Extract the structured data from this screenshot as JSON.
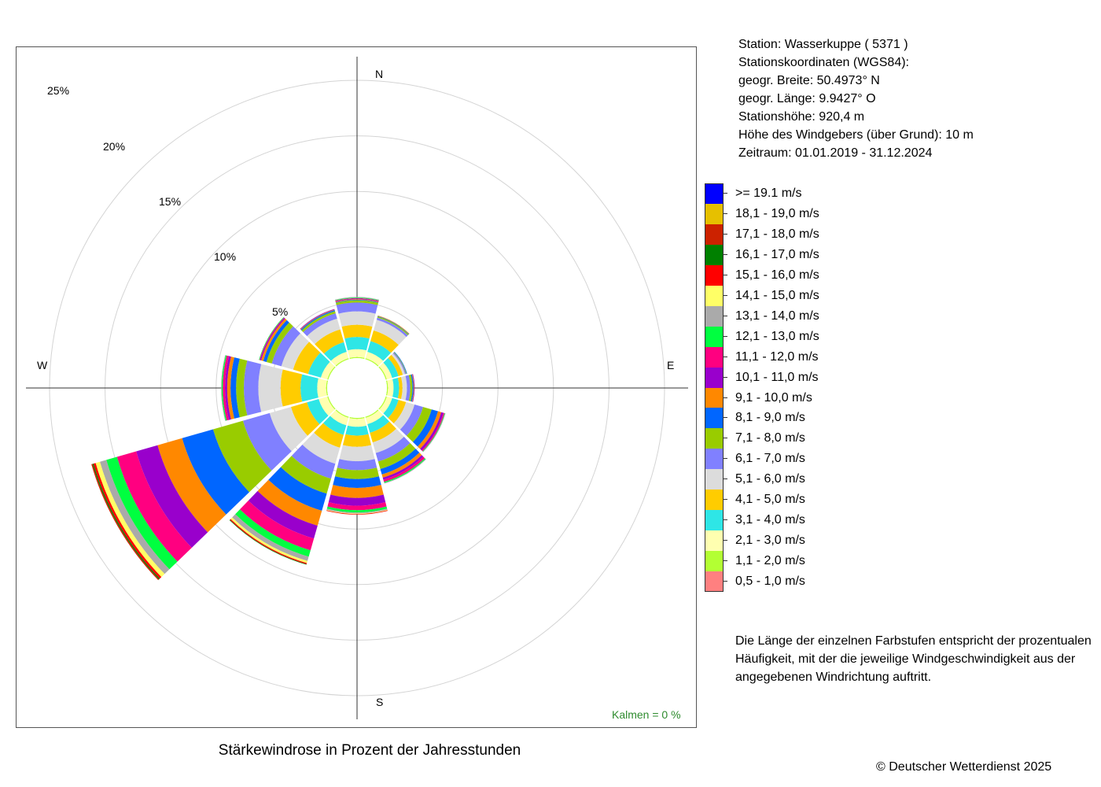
{
  "title": "Stärkewindrose in Prozent der Jahresstunden",
  "station": {
    "lines": [
      "Station:  Wasserkuppe  ( 5371 )",
      "Stationskoordinaten (WGS84):",
      "geogr. Breite: 50.4973° N",
      "geogr. Länge:   9.9427° O",
      "Stationshöhe: 920,4 m",
      "Höhe des Windgebers (über Grund): 10 m",
      "Zeitraum: 01.01.2019 - 31.12.2024"
    ]
  },
  "compass": {
    "north": "N",
    "east": "E",
    "south": "S",
    "west": "W"
  },
  "calm_label": "Kalmen  =  0 %",
  "legend_note": "Die Länge der einzelnen Farbstufen entspricht der prozentualen Häufigkeit, mit der die jeweilige Windgeschwindigkeit aus der angegebenen Windrichtung auftritt.",
  "copyright": "© Deutscher Wetterdienst  2025",
  "chart_data": {
    "type": "wind_rose",
    "title": "Stärkewindrose in Prozent der Jahresstunden",
    "unit": "%",
    "radial_ticks": [
      5,
      10,
      15,
      20,
      25
    ],
    "radial_tick_labels": [
      "5%",
      "10%",
      "15%",
      "20%",
      "25%"
    ],
    "directions_deg": [
      0,
      30,
      60,
      90,
      120,
      150,
      180,
      210,
      240,
      270,
      300,
      330
    ],
    "calm_percent": 0,
    "speed_classes": [
      {
        "label": "0,5 - 1,0 m/s",
        "color": "#ff8080"
      },
      {
        "label": "1,1 - 2,0 m/s",
        "color": "#b3ff33"
      },
      {
        "label": "2,1 - 3,0 m/s",
        "color": "#ffffb0"
      },
      {
        "label": "3,1 - 4,0 m/s",
        "color": "#2ee6e6"
      },
      {
        "label": "4,1 - 5,0 m/s",
        "color": "#ffcc00"
      },
      {
        "label": "5,1 - 6,0 m/s",
        "color": "#dcdcdc"
      },
      {
        "label": "6,1 - 7,0 m/s",
        "color": "#8080ff"
      },
      {
        "label": "7,1 - 8,0 m/s",
        "color": "#99cc00"
      },
      {
        "label": "8,1 - 9,0 m/s",
        "color": "#0066ff"
      },
      {
        "label": "9,1 - 10,0 m/s",
        "color": "#ff8800"
      },
      {
        "label": "10,1 - 11,0 m/s",
        "color": "#9900cc"
      },
      {
        "label": "11,1 - 12,0 m/s",
        "color": "#ff0080"
      },
      {
        "label": "12,1 - 13,0 m/s",
        "color": "#00ff40"
      },
      {
        "label": "13,1 - 14,0 m/s",
        "color": "#aaaaaa"
      },
      {
        "label": "14,1 - 15,0 m/s",
        "color": "#ffff66"
      },
      {
        "label": "15,1 - 16,0 m/s",
        "color": "#ff0000"
      },
      {
        "label": "16,1 - 17,0 m/s",
        "color": "#008000"
      },
      {
        "label": "17,1 - 18,0 m/s",
        "color": "#cc2200"
      },
      {
        "label": "18,1 - 19,0 m/s",
        "color": "#e6c000"
      },
      {
        "label": ">= 19.1 m/s",
        "color": "#0000ff"
      }
    ],
    "frequencies_percent": [
      [
        0,
        0.1,
        0.7,
        1.1,
        1.1,
        1.2,
        0.8,
        0.2,
        0.05,
        0.05,
        0.05,
        0.05,
        0.05,
        0.05,
        0,
        0,
        0,
        0,
        0,
        0
      ],
      [
        0,
        0.1,
        0.6,
        1.0,
        1.0,
        1.0,
        0.2,
        0.1,
        0.05,
        0.05,
        0,
        0,
        0,
        0,
        0,
        0,
        0,
        0,
        0,
        0
      ],
      [
        0,
        0.1,
        0.5,
        0.6,
        0.4,
        0.2,
        0.1,
        0.05,
        0.05,
        0,
        0,
        0,
        0,
        0,
        0,
        0,
        0,
        0,
        0,
        0
      ],
      [
        0,
        0.1,
        0.5,
        0.5,
        0.3,
        0.4,
        0.3,
        0.2,
        0.1,
        0.05,
        0.05,
        0,
        0,
        0,
        0,
        0,
        0,
        0,
        0,
        0
      ],
      [
        0,
        0.1,
        0.5,
        0.6,
        0.7,
        0.8,
        0.8,
        0.8,
        0.6,
        0.3,
        0.2,
        0.1,
        0.05,
        0.05,
        0,
        0,
        0,
        0,
        0,
        0
      ],
      [
        0,
        0.1,
        0.6,
        0.8,
        0.9,
        1.0,
        0.8,
        0.7,
        0.5,
        0.3,
        0.2,
        0.2,
        0.1,
        0.05,
        0,
        0,
        0,
        0,
        0,
        0
      ],
      [
        0,
        0.1,
        0.7,
        0.8,
        1.0,
        1.3,
        0.8,
        0.8,
        0.8,
        0.9,
        0.7,
        0.4,
        0.2,
        0.1,
        0.05,
        0.05,
        0,
        0,
        0,
        0
      ],
      [
        0,
        0.1,
        0.7,
        0.9,
        1.2,
        1.5,
        1.4,
        1.4,
        1.6,
        1.4,
        1.2,
        1.1,
        0.6,
        0.4,
        0.2,
        0.1,
        0.05,
        0,
        0,
        0
      ],
      [
        0,
        0.1,
        0.8,
        1.1,
        1.5,
        2.0,
        2.5,
        2.8,
        2.9,
        2.3,
        2.0,
        1.8,
        1.0,
        0.6,
        0.4,
        0.2,
        0.1,
        0.1,
        0,
        0
      ],
      [
        0,
        0.1,
        0.8,
        1.5,
        1.8,
        2.0,
        1.3,
        0.7,
        0.5,
        0.3,
        0.2,
        0.2,
        0.1,
        0.05,
        0,
        0,
        0,
        0,
        0,
        0
      ],
      [
        0,
        0.1,
        0.6,
        1.2,
        1.4,
        1.1,
        0.9,
        0.5,
        0.3,
        0.2,
        0.1,
        0.05,
        0.05,
        0,
        0,
        0,
        0,
        0,
        0,
        0
      ],
      [
        0,
        0.1,
        0.6,
        0.9,
        1.2,
        1.0,
        0.5,
        0.2,
        0.1,
        0.05,
        0.05,
        0,
        0,
        0,
        0,
        0,
        0,
        0,
        0,
        0
      ]
    ]
  }
}
